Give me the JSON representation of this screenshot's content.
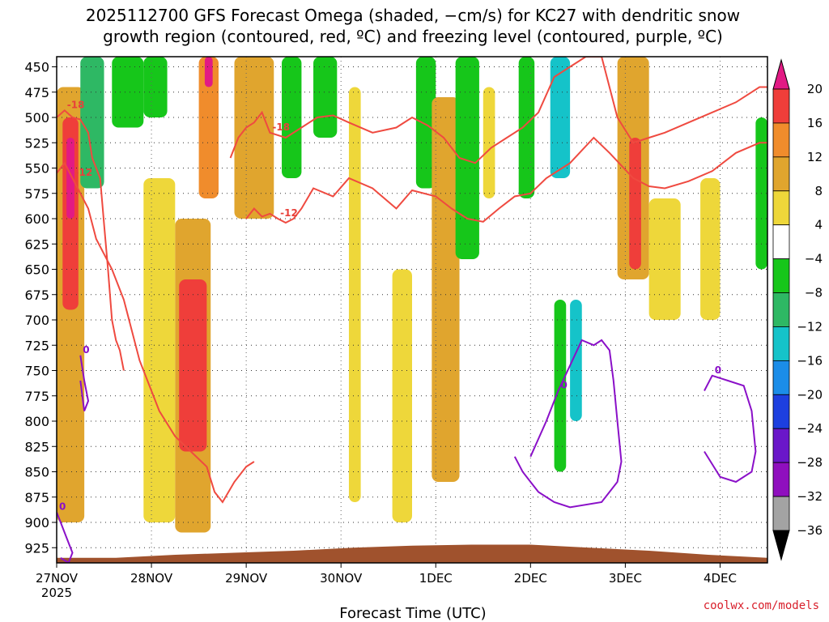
{
  "title": {
    "line1": "2025112700 GFS Forecast Omega (shaded, −cm/s) for KC27 with dendritic snow",
    "line2": "growth region (contoured, red, ºC) and freezing level (contoured, purple, ºC)"
  },
  "credit": "coolwx.com/models",
  "chart_data": {
    "type": "heatmap",
    "title": "2025112700 GFS Forecast Omega (shaded, −cm/s) for KC27 with dendritic snow growth region (contoured, red, ºC) and freezing level (contoured, purple, ºC)",
    "xlabel": "Forecast Time (UTC)",
    "ylabel": "Pressure (hPa)",
    "xlim_hours": [
      0,
      180
    ],
    "ylim_hpa": [
      440,
      940
    ],
    "x_ticks": [
      {
        "label": "27NOV",
        "sub": "2025",
        "hour": 0
      },
      {
        "label": "28NOV",
        "sub": "",
        "hour": 24
      },
      {
        "label": "29NOV",
        "sub": "",
        "hour": 48
      },
      {
        "label": "30NOV",
        "sub": "",
        "hour": 72
      },
      {
        "label": "1DEC",
        "sub": "",
        "hour": 96
      },
      {
        "label": "2DEC",
        "sub": "",
        "hour": 120
      },
      {
        "label": "3DEC",
        "sub": "",
        "hour": 144
      },
      {
        "label": "4DEC",
        "sub": "",
        "hour": 168
      }
    ],
    "y_ticks": [
      450,
      475,
      500,
      525,
      550,
      575,
      600,
      625,
      650,
      675,
      700,
      725,
      750,
      775,
      800,
      825,
      850,
      875,
      900,
      925
    ],
    "colorbar": {
      "labels": [
        "20",
        "16",
        "12",
        "8",
        "4",
        "−4",
        "−8",
        "−12",
        "−16",
        "−20",
        "−24",
        "−28",
        "−32",
        "−36"
      ],
      "colors": [
        "#e21a84",
        "#ef3e3a",
        "#f08c2c",
        "#e0a52e",
        "#eed73a",
        "#ffffff",
        "#16c61a",
        "#2eb864",
        "#15c3c9",
        "#1b8de8",
        "#1d3fdf",
        "#6a17c9",
        "#8f0fbe",
        "#a3a3a3",
        "#000000"
      ]
    },
    "omega_regions": [
      {
        "t": [
          0,
          7
        ],
        "p": [
          470,
          900
        ],
        "value": 8
      },
      {
        "t": [
          1.5,
          5.5
        ],
        "p": [
          500,
          690
        ],
        "value": 16
      },
      {
        "t": [
          2.5,
          4.5
        ],
        "p": [
          520,
          600
        ],
        "value": 20
      },
      {
        "t": [
          6,
          12
        ],
        "p": [
          440,
          570
        ],
        "value": -12
      },
      {
        "t": [
          14,
          22
        ],
        "p": [
          440,
          510
        ],
        "value": -8
      },
      {
        "t": [
          22,
          28
        ],
        "p": [
          440,
          500
        ],
        "value": -8
      },
      {
        "t": [
          22,
          30
        ],
        "p": [
          560,
          900
        ],
        "value": 4
      },
      {
        "t": [
          30,
          39
        ],
        "p": [
          600,
          910
        ],
        "value": 8
      },
      {
        "t": [
          31,
          38
        ],
        "p": [
          660,
          830
        ],
        "value": 16
      },
      {
        "t": [
          36,
          41
        ],
        "p": [
          440,
          580
        ],
        "value": 12
      },
      {
        "t": [
          37.5,
          39.5
        ],
        "p": [
          440,
          470
        ],
        "value": 20
      },
      {
        "t": [
          45,
          55
        ],
        "p": [
          440,
          600
        ],
        "value": 8
      },
      {
        "t": [
          57,
          62
        ],
        "p": [
          440,
          560
        ],
        "value": -8
      },
      {
        "t": [
          65,
          71
        ],
        "p": [
          440,
          520
        ],
        "value": -8
      },
      {
        "t": [
          74,
          77
        ],
        "p": [
          470,
          880
        ],
        "value": 4
      },
      {
        "t": [
          85,
          90
        ],
        "p": [
          650,
          900
        ],
        "value": 4
      },
      {
        "t": [
          91,
          96
        ],
        "p": [
          440,
          570
        ],
        "value": -8
      },
      {
        "t": [
          95,
          102
        ],
        "p": [
          480,
          860
        ],
        "value": 8
      },
      {
        "t": [
          101,
          107
        ],
        "p": [
          440,
          640
        ],
        "value": -8
      },
      {
        "t": [
          108,
          111
        ],
        "p": [
          470,
          580
        ],
        "value": 4
      },
      {
        "t": [
          117,
          121
        ],
        "p": [
          440,
          580
        ],
        "value": -8
      },
      {
        "t": [
          125,
          130
        ],
        "p": [
          440,
          560
        ],
        "value": -16
      },
      {
        "t": [
          126,
          129
        ],
        "p": [
          680,
          850
        ],
        "value": -8
      },
      {
        "t": [
          130,
          133
        ],
        "p": [
          680,
          800
        ],
        "value": -16
      },
      {
        "t": [
          142,
          150
        ],
        "p": [
          440,
          660
        ],
        "value": 8
      },
      {
        "t": [
          145,
          148
        ],
        "p": [
          520,
          650
        ],
        "value": 16
      },
      {
        "t": [
          150,
          158
        ],
        "p": [
          580,
          700
        ],
        "value": 4
      },
      {
        "t": [
          163,
          168
        ],
        "p": [
          560,
          700
        ],
        "value": 4
      },
      {
        "t": [
          177,
          180
        ],
        "p": [
          500,
          650
        ],
        "value": -8
      }
    ],
    "contours_red": [
      {
        "label": "-18",
        "hours": [
          0,
          2,
          4,
          6,
          8,
          9,
          11,
          12,
          13,
          14,
          15,
          16,
          17
        ],
        "hpa": [
          500,
          493,
          500,
          502,
          515,
          540,
          560,
          605,
          650,
          700,
          720,
          730,
          750
        ]
      },
      {
        "label": "-12",
        "hours": [
          0,
          2,
          4,
          6,
          8,
          10,
          14,
          17,
          21,
          26,
          30,
          34,
          38,
          40,
          42,
          45,
          48,
          50
        ],
        "hpa": [
          555,
          545,
          560,
          575,
          590,
          620,
          650,
          680,
          740,
          790,
          815,
          830,
          845,
          870,
          880,
          860,
          845,
          840
        ]
      },
      {
        "label": "-12",
        "hours": [
          48,
          50,
          52,
          54,
          56,
          58,
          60,
          62,
          65,
          70,
          74,
          80,
          86,
          90,
          96,
          100,
          104,
          108,
          112,
          116,
          120,
          124,
          130,
          136,
          140,
          146,
          150,
          154,
          160,
          166,
          172,
          178,
          180
        ],
        "hpa": [
          600,
          590,
          598,
          595,
          600,
          604,
          600,
          590,
          570,
          578,
          560,
          570,
          590,
          572,
          578,
          590,
          600,
          603,
          590,
          578,
          575,
          560,
          545,
          520,
          535,
          560,
          568,
          570,
          563,
          553,
          535,
          525,
          525
        ]
      },
      {
        "label": "-18",
        "hours": [
          44,
          46,
          48,
          50,
          52,
          54,
          58,
          62,
          66,
          70,
          74,
          80,
          86,
          90,
          94,
          98,
          102,
          106,
          110,
          114,
          118,
          122,
          126,
          130,
          134,
          138,
          142,
          146,
          150,
          154,
          160,
          166,
          172,
          178,
          180
        ],
        "hpa": [
          540,
          520,
          510,
          505,
          495,
          515,
          520,
          510,
          500,
          498,
          505,
          515,
          510,
          500,
          508,
          520,
          540,
          545,
          530,
          520,
          510,
          495,
          460,
          450,
          440,
          440,
          500,
          525,
          520,
          515,
          505,
          495,
          485,
          470,
          470
        ]
      }
    ],
    "contours_purple": [
      {
        "label": "0",
        "hours": [
          0,
          1,
          3,
          4,
          3,
          1
        ],
        "hpa": [
          890,
          900,
          920,
          930,
          940,
          935
        ]
      },
      {
        "label": "0",
        "hours": [
          6,
          7,
          8,
          7,
          6
        ],
        "hpa": [
          735,
          760,
          780,
          790,
          760
        ]
      },
      {
        "label": "0",
        "hours": [
          120,
          124,
          127,
          130,
          133,
          136,
          138,
          140,
          141,
          142,
          143,
          142,
          138,
          130,
          126,
          122,
          120,
          118,
          116
        ],
        "hpa": [
          835,
          800,
          770,
          745,
          720,
          725,
          720,
          730,
          760,
          800,
          840,
          860,
          880,
          885,
          880,
          870,
          860,
          850,
          835
        ]
      },
      {
        "label": "0",
        "hours": [
          164,
          166,
          170,
          174,
          176,
          177,
          176,
          172,
          168,
          164
        ],
        "hpa": [
          770,
          755,
          760,
          765,
          790,
          830,
          850,
          860,
          855,
          830
        ]
      }
    ],
    "terrain_hpa": [
      935,
      935,
      932,
      930,
      928,
      925,
      923,
      922,
      922,
      925,
      928,
      932,
      935
    ]
  }
}
